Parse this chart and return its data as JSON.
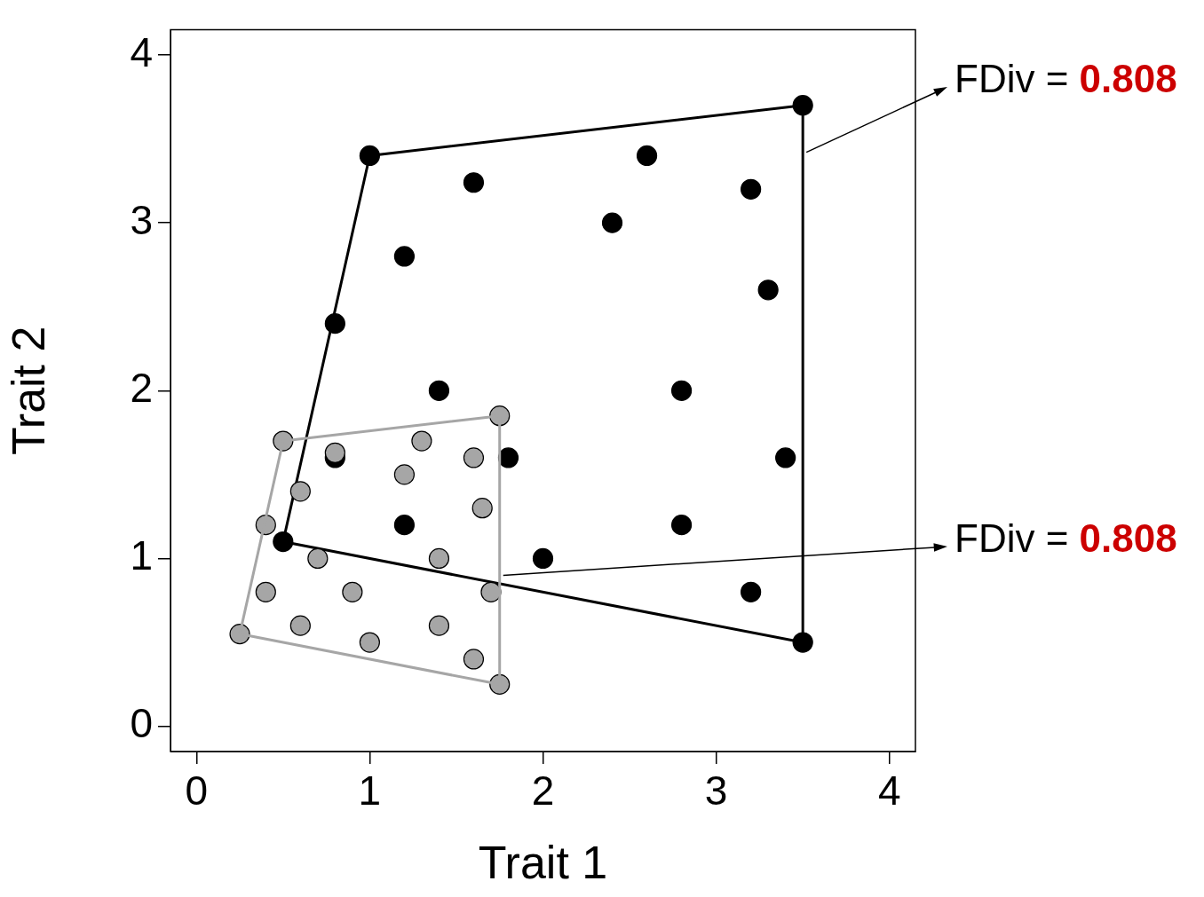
{
  "chart_data": {
    "type": "scatter",
    "xlabel": "Trait 1",
    "ylabel": "Trait 2",
    "xlim": [
      -0.15,
      4.15
    ],
    "ylim": [
      -0.15,
      4.15
    ],
    "xticks": [
      0,
      1,
      2,
      3,
      4
    ],
    "yticks": [
      0,
      1,
      2,
      3,
      4
    ],
    "grid": false,
    "legend": false,
    "marker": "circle",
    "series": [
      {
        "type": "line",
        "marker": "none",
        "color": "#a6a6a6",
        "x": [
          0.25,
          0.5,
          1.75,
          1.75
        ],
        "values": [
          0.55,
          1.7,
          1.85,
          0.25
        ]
      },
      {
        "type": "line",
        "marker": "none",
        "color": "#a6a6a6",
        "x": [
          0.25,
          1.75
        ],
        "values": [
          0.55,
          0.25
        ]
      },
      {
        "color": "#a6a6a6",
        "x": [
          0.5,
          1.75,
          0.8,
          1.3,
          1.6,
          1.2,
          0.6,
          1.65,
          0.4,
          0.7,
          1.4,
          0.4,
          0.9,
          1.7,
          0.6,
          1.4,
          0.25,
          1.0,
          1.6,
          1.75
        ],
        "values": [
          1.7,
          1.85,
          1.63,
          1.7,
          1.6,
          1.5,
          1.4,
          1.3,
          1.2,
          1.0,
          1.0,
          0.8,
          0.8,
          0.8,
          0.6,
          0.6,
          0.55,
          0.5,
          0.4,
          0.25
        ]
      },
      {
        "type": "line",
        "marker": "none",
        "color": "#000000",
        "x": [
          0.5,
          1.0,
          3.5,
          3.5
        ],
        "values": [
          1.1,
          3.4,
          3.7,
          0.5
        ]
      },
      {
        "type": "line",
        "marker": "none",
        "color": "#000000",
        "x": [
          0.5,
          3.5
        ],
        "values": [
          1.1,
          0.5
        ]
      },
      {
        "color": "#000000",
        "x": [
          1.0,
          3.5,
          1.6,
          2.6,
          3.2,
          2.4,
          1.2,
          3.3,
          0.8,
          1.4,
          2.8,
          0.8,
          1.8,
          3.4,
          1.2,
          2.8,
          0.5,
          2.0,
          3.2,
          3.5
        ],
        "values": [
          3.4,
          3.7,
          3.24,
          3.4,
          3.2,
          3.0,
          2.8,
          2.6,
          2.4,
          2.0,
          2.0,
          1.6,
          1.6,
          1.6,
          1.2,
          1.2,
          1.1,
          1.0,
          0.8,
          0.5
        ]
      }
    ],
    "annotations": [
      {
        "text": "FDiv = 0.808",
        "x": 3.5,
        "y": 3.42
      },
      {
        "text": "FDiv = 0.808",
        "x": 1.75,
        "y": 0.9
      }
    ]
  }
}
